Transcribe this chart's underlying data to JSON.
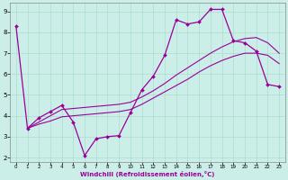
{
  "xlabel": "Windchill (Refroidissement éolien,°C)",
  "background_color": "#cceee8",
  "grid_color": "#aaddcc",
  "line_color": "#990099",
  "xlim": [
    -0.5,
    23.5
  ],
  "ylim": [
    1.8,
    9.4
  ],
  "yticks": [
    2,
    3,
    4,
    5,
    6,
    7,
    8,
    9
  ],
  "xticks": [
    0,
    1,
    2,
    3,
    4,
    5,
    6,
    7,
    8,
    9,
    10,
    11,
    12,
    13,
    14,
    15,
    16,
    17,
    18,
    19,
    20,
    21,
    22,
    23
  ],
  "line1_x": [
    0,
    1,
    2,
    3,
    4,
    5,
    6,
    7,
    8,
    9,
    10,
    11,
    12,
    13,
    14,
    15,
    16,
    17,
    18,
    19,
    20,
    21,
    22,
    23
  ],
  "line1_y": [
    8.3,
    3.4,
    3.9,
    4.2,
    4.5,
    3.7,
    2.1,
    2.9,
    3.0,
    3.05,
    4.15,
    5.25,
    5.9,
    6.9,
    8.6,
    8.4,
    8.5,
    9.1,
    9.1,
    7.6,
    7.5,
    7.1,
    5.5,
    5.4
  ],
  "line2_x": [
    1,
    2,
    3,
    4,
    5,
    6,
    7,
    8,
    9,
    10,
    11,
    12,
    13,
    14,
    15,
    16,
    17,
    18,
    19,
    20,
    21,
    22,
    23
  ],
  "line2_y": [
    3.4,
    3.7,
    4.0,
    4.3,
    4.35,
    4.4,
    4.45,
    4.5,
    4.55,
    4.65,
    4.9,
    5.2,
    5.55,
    5.95,
    6.3,
    6.65,
    7.0,
    7.3,
    7.55,
    7.7,
    7.75,
    7.5,
    7.0
  ],
  "line3_x": [
    1,
    2,
    3,
    4,
    5,
    6,
    7,
    8,
    9,
    10,
    11,
    12,
    13,
    14,
    15,
    16,
    17,
    18,
    19,
    20,
    21,
    22,
    23
  ],
  "line3_y": [
    3.4,
    3.6,
    3.75,
    3.95,
    4.0,
    4.05,
    4.1,
    4.15,
    4.2,
    4.3,
    4.55,
    4.85,
    5.15,
    5.45,
    5.75,
    6.1,
    6.4,
    6.65,
    6.85,
    7.0,
    7.0,
    6.9,
    6.5
  ]
}
